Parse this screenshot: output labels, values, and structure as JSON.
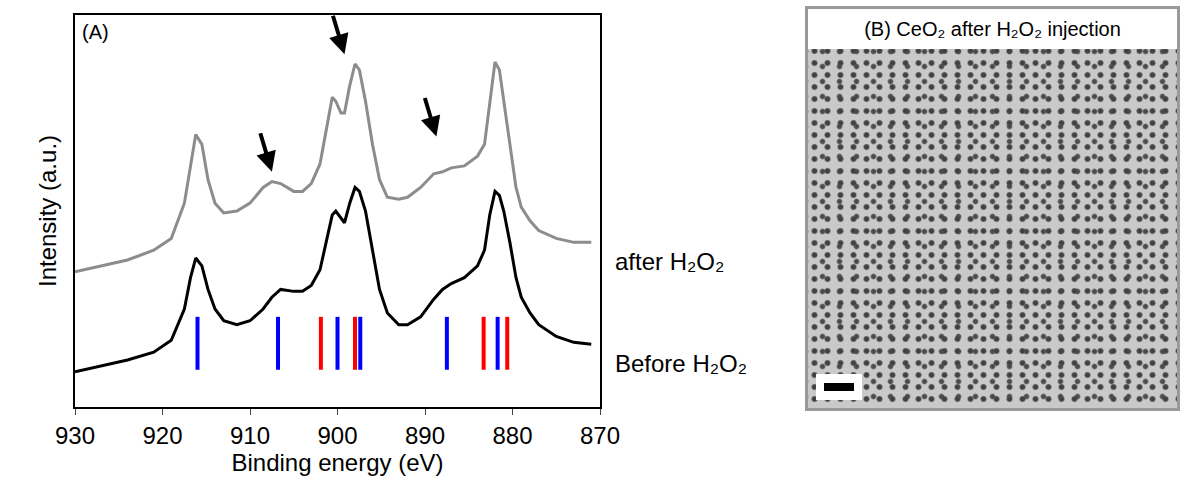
{
  "chart_data": {
    "type": "line",
    "panel_label": "(A)",
    "x_label": "Binding energy (eV)",
    "y_label": "Intensity (a.u.)",
    "xlim": [
      930,
      870
    ],
    "xticks": [
      930,
      920,
      910,
      900,
      890,
      880,
      870
    ],
    "ylim": [
      0,
      100
    ],
    "tick_labels": "x",
    "grid": false,
    "x": [
      930,
      927,
      924,
      921,
      919,
      917.5,
      916.8,
      916.2,
      915.5,
      914.8,
      914,
      913,
      911.5,
      910,
      908.5,
      907.5,
      906.5,
      905,
      904,
      903,
      902,
      901.2,
      900.6,
      900.2,
      899.6,
      899.2,
      898.6,
      898,
      897.5,
      896.8,
      896,
      895.2,
      894.3,
      893,
      892,
      890.5,
      889,
      888,
      887,
      885.5,
      884,
      883.2,
      882.6,
      882,
      881.5,
      881,
      880.3,
      879.6,
      879,
      878,
      877,
      875,
      873,
      871
    ],
    "series": [
      {
        "name": "Before H₂O₂",
        "color": "#000000",
        "values": [
          9,
          10.5,
          12,
          14,
          17,
          25,
          33,
          38,
          36,
          30,
          25,
          22,
          21,
          22,
          25,
          28,
          30,
          29.5,
          29.5,
          31,
          35,
          43,
          49,
          50,
          48,
          47,
          52,
          56,
          55,
          50,
          40,
          30,
          24,
          21,
          21,
          23,
          27.5,
          30,
          31.5,
          33,
          36,
          40,
          49,
          55,
          54,
          50,
          42,
          33,
          28,
          24,
          21,
          18,
          16.5,
          16
        ]
      },
      {
        "name": "after H₂O₂",
        "color": "#8c8c8c",
        "values": [
          34.5,
          36,
          37.5,
          40,
          43,
          52,
          62,
          69.5,
          67,
          58,
          52,
          49.5,
          50,
          52,
          56,
          57.5,
          57,
          55,
          55,
          57,
          62,
          72,
          79,
          78,
          75,
          75,
          82,
          87.5,
          86,
          78,
          67,
          58,
          53.5,
          53,
          53.5,
          56,
          59.5,
          60,
          61,
          61.5,
          64,
          67,
          78,
          88,
          86,
          78,
          66,
          56,
          51,
          47.5,
          45,
          43,
          42,
          42
        ]
      }
    ],
    "reference_lines": [
      {
        "color": "#0000ff",
        "positions": [
          916.0,
          906.8,
          900.0,
          897.4,
          887.5,
          881.7
        ],
        "ymin": 9.5,
        "ymax": 23
      },
      {
        "color": "#ff0000",
        "positions": [
          901.9,
          898.0,
          883.3,
          880.6
        ],
        "ymin": 9.5,
        "ymax": 23
      }
    ],
    "arrows": [
      {
        "x": 907.5,
        "y": 60
      },
      {
        "x": 899.2,
        "y": 90
      },
      {
        "x": 888.7,
        "y": 69
      }
    ]
  },
  "image_panel": {
    "title": "(B) CeO₂ after H₂O₂ injection"
  }
}
